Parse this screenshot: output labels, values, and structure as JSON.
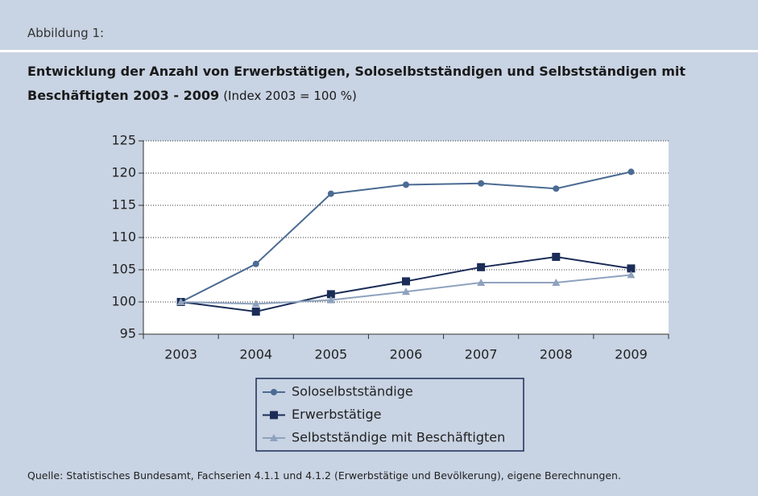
{
  "figure_label": "Abbildung 1:",
  "chart_data": {
    "type": "line",
    "title": "Entwicklung der Anzahl von Erwerbstätigen, Soloselbstständigen und Selbstständigen mit Beschäftigten 2003 - 2009",
    "subtitle": "(Index 2003 = 100 %)",
    "categories": [
      "2003",
      "2004",
      "2005",
      "2006",
      "2007",
      "2008",
      "2009"
    ],
    "series": [
      {
        "name": "Soloselbstständige",
        "color": "#4b6b93",
        "marker": "circle",
        "values": [
          100,
          105.9,
          116.8,
          118.2,
          118.4,
          117.6,
          120.2
        ]
      },
      {
        "name": "Erwerbstätige",
        "color": "#1b2d57",
        "marker": "square",
        "values": [
          100,
          98.5,
          101.2,
          103.2,
          105.4,
          107.0,
          105.2
        ]
      },
      {
        "name": "Selbstständige mit Beschäftigten",
        "color": "#8ea2be",
        "marker": "triangle",
        "values": [
          100,
          99.7,
          100.3,
          101.6,
          103.0,
          103.0,
          104.2
        ]
      }
    ],
    "ylim": [
      95,
      125
    ],
    "yticks": [
      95,
      100,
      105,
      110,
      115,
      120,
      125
    ],
    "grid": true,
    "source": "Quelle: Statistisches Bundesamt, Fachserien 4.1.1 und 4.1.2 (Erwerbstätige und Bevölkerung), eigene Berechnungen."
  }
}
